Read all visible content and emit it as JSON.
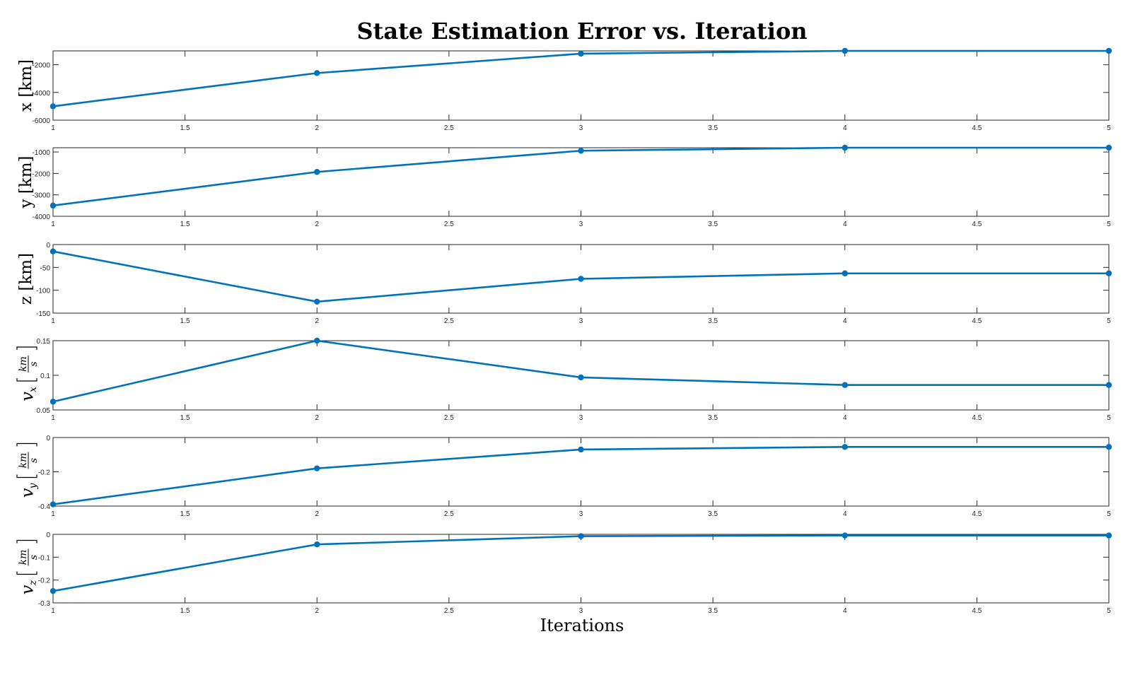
{
  "figure": {
    "title": "State Estimation Error vs. Iteration",
    "xlabel": "Iterations",
    "line_color": "#0072BD"
  },
  "chart_data": [
    {
      "type": "line",
      "ylabel": "x [km]",
      "x": [
        1,
        2,
        3,
        4,
        5
      ],
      "values": [
        -5000,
        -2600,
        -1200,
        -1000,
        -1000
      ],
      "xlim": [
        1,
        5
      ],
      "ylim": [
        -6000,
        -1000
      ],
      "xticks": [
        "1",
        "1.5",
        "2",
        "2.5",
        "3",
        "3.5",
        "4",
        "4.5",
        "5"
      ],
      "yticks": [
        {
          "v": -6000,
          "label": "-6000"
        },
        {
          "v": -4000,
          "label": "-4000"
        },
        {
          "v": -2000,
          "label": "-2000"
        }
      ]
    },
    {
      "type": "line",
      "ylabel": "y [km]",
      "x": [
        1,
        2,
        3,
        4,
        5
      ],
      "values": [
        -3500,
        -1930,
        -940,
        -800,
        -800
      ],
      "xlim": [
        1,
        5
      ],
      "ylim": [
        -4000,
        -800
      ],
      "xticks": [
        "1",
        "1.5",
        "2",
        "2.5",
        "3",
        "3.5",
        "4",
        "4.5",
        "5"
      ],
      "yticks": [
        {
          "v": -4000,
          "label": "-4000"
        },
        {
          "v": -3000,
          "label": "-3000"
        },
        {
          "v": -2000,
          "label": "-2000"
        },
        {
          "v": -1000,
          "label": "-1000"
        }
      ]
    },
    {
      "type": "line",
      "ylabel": "z [km]",
      "x": [
        1,
        2,
        3,
        4,
        5
      ],
      "values": [
        -15,
        -125,
        -75,
        -63,
        -63
      ],
      "xlim": [
        1,
        5
      ],
      "ylim": [
        -150,
        0
      ],
      "xticks": [
        "1",
        "1.5",
        "2",
        "2.5",
        "3",
        "3.5",
        "4",
        "4.5",
        "5"
      ],
      "yticks": [
        {
          "v": -150,
          "label": "-150"
        },
        {
          "v": -100,
          "label": "-100"
        },
        {
          "v": -50,
          "label": "-50"
        },
        {
          "v": 0,
          "label": "0"
        }
      ]
    },
    {
      "type": "line",
      "ylabel_sym": "v",
      "ylabel_sub": "x",
      "ylabel_num": "km",
      "ylabel_den": "s",
      "x": [
        1,
        2,
        3,
        4,
        5
      ],
      "values": [
        0.062,
        0.15,
        0.097,
        0.086,
        0.086
      ],
      "xlim": [
        1,
        5
      ],
      "ylim": [
        0.05,
        0.15
      ],
      "xticks": [
        "1",
        "1.5",
        "2",
        "2.5",
        "3",
        "3.5",
        "4",
        "4.5",
        "5"
      ],
      "yticks": [
        {
          "v": 0.05,
          "label": "0.05"
        },
        {
          "v": 0.1,
          "label": "0.1"
        },
        {
          "v": 0.15,
          "label": "0.15"
        }
      ]
    },
    {
      "type": "line",
      "ylabel_sym": "v",
      "ylabel_sub": "y",
      "ylabel_num": "km",
      "ylabel_den": "s",
      "x": [
        1,
        2,
        3,
        4,
        5
      ],
      "values": [
        -0.39,
        -0.18,
        -0.07,
        -0.055,
        -0.055
      ],
      "xlim": [
        1,
        5
      ],
      "ylim": [
        -0.4,
        0
      ],
      "xticks": [
        "1",
        "1.5",
        "2",
        "2.5",
        "3",
        "3.5",
        "4",
        "4.5",
        "5"
      ],
      "yticks": [
        {
          "v": -0.4,
          "label": "-0.4"
        },
        {
          "v": -0.2,
          "label": "-0.2"
        },
        {
          "v": 0,
          "label": "0"
        }
      ]
    },
    {
      "type": "line",
      "ylabel_sym": "v",
      "ylabel_sub": "z",
      "ylabel_num": "km",
      "ylabel_den": "s",
      "x": [
        1,
        2,
        3,
        4,
        5
      ],
      "values": [
        -0.248,
        -0.044,
        -0.008,
        -0.005,
        -0.005
      ],
      "xlim": [
        1,
        5
      ],
      "ylim": [
        -0.3,
        0
      ],
      "xticks": [
        "1",
        "1.5",
        "2",
        "2.5",
        "3",
        "3.5",
        "4",
        "4.5",
        "5"
      ],
      "yticks": [
        {
          "v": -0.3,
          "label": "-0.3"
        },
        {
          "v": -0.2,
          "label": "-0.2"
        },
        {
          "v": -0.1,
          "label": "-0.1"
        },
        {
          "v": 0,
          "label": "0"
        }
      ]
    }
  ]
}
